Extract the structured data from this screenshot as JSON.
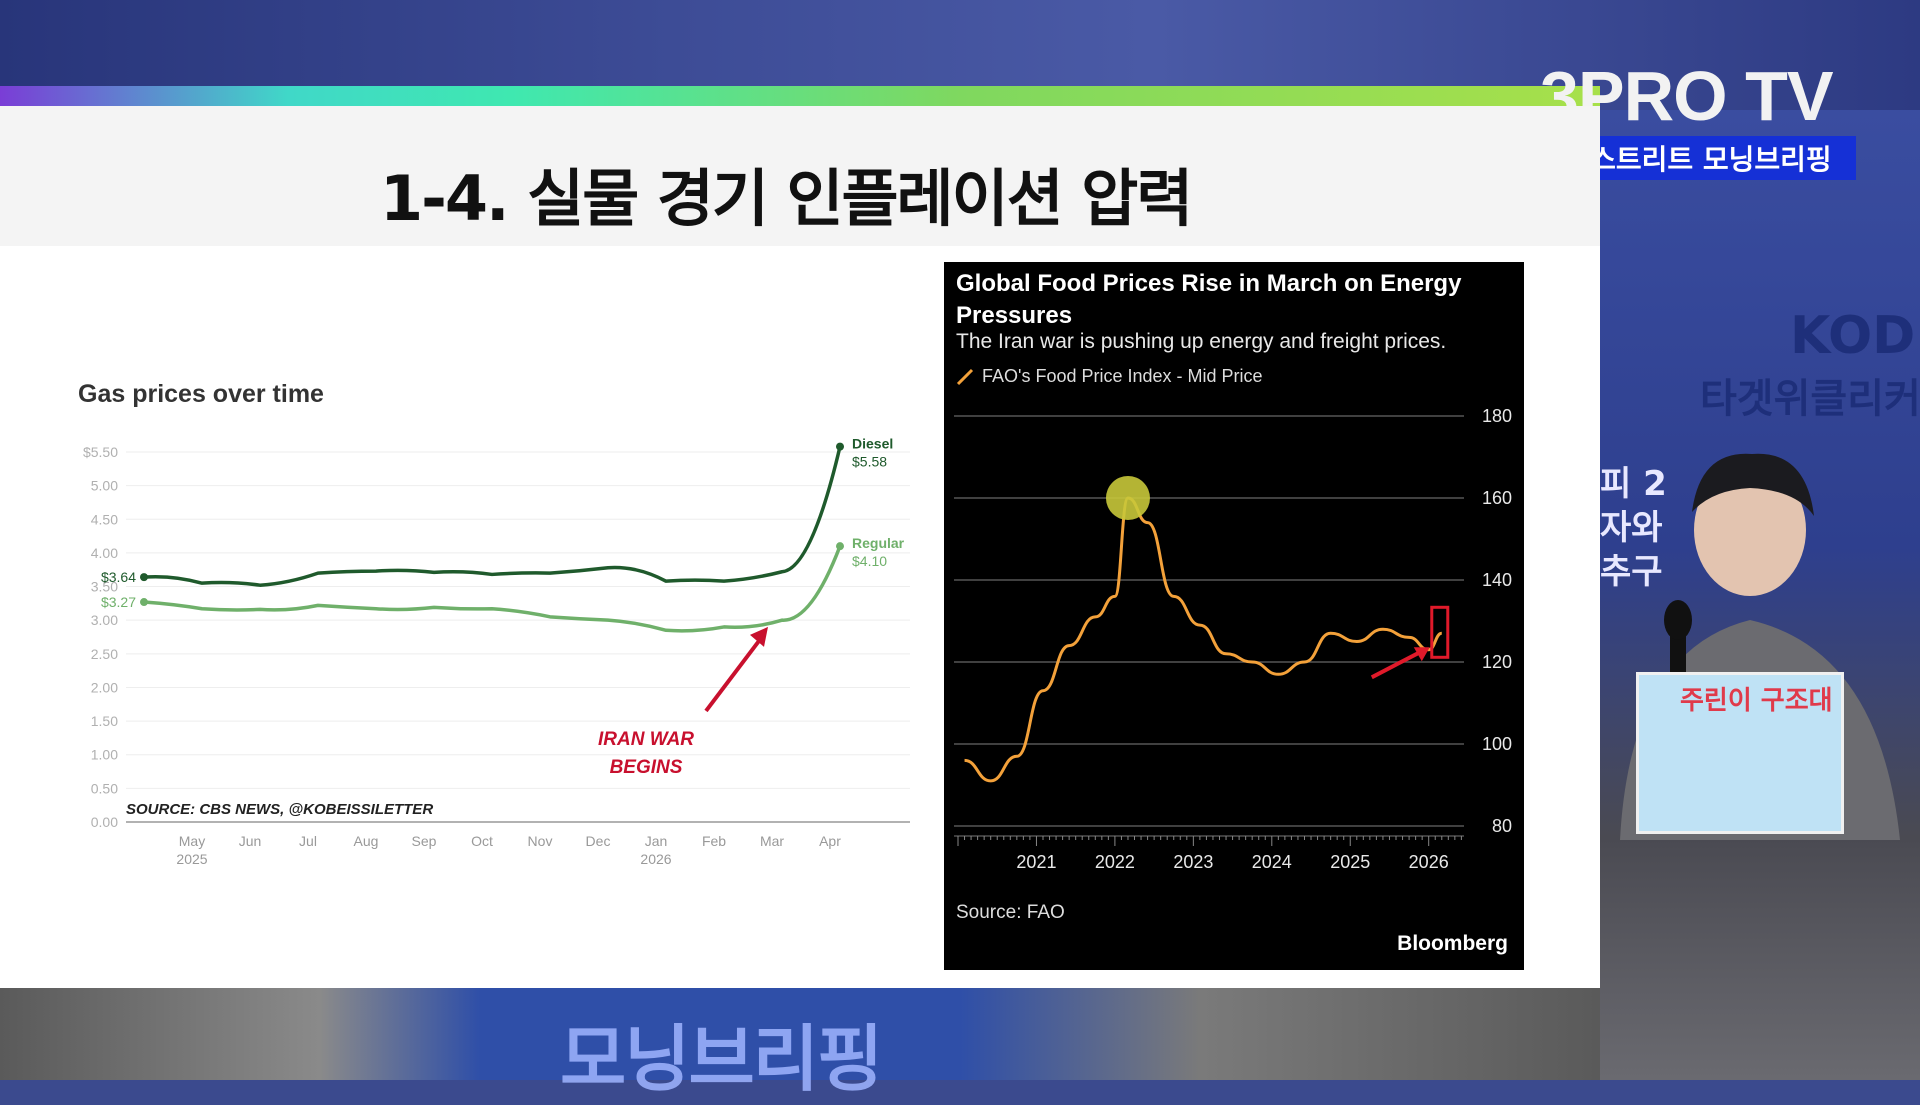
{
  "header": {
    "channel_logo": "3PRO TV",
    "show_badge": "월스트리트 모닝브리핑"
  },
  "slide": {
    "title": "1-4. 실물 경기 인플레이션 압력"
  },
  "studio": {
    "wall_text_1": "KODE",
    "wall_text_2": "타겟위클리커",
    "wall_text_3": "피 2",
    "wall_text_4": "자와",
    "wall_text_5": "추구",
    "desk_banner": "주린이 구조대",
    "bottom_sign": "모닝브리핑"
  },
  "chart_data": [
    {
      "type": "line",
      "title": "Gas prices over time",
      "x": [
        "2025-04-15",
        "2025-05",
        "2025-06",
        "2025-07",
        "2025-08",
        "2025-09",
        "2025-10",
        "2025-11",
        "2025-12",
        "2026-01",
        "2026-02",
        "2026-03",
        "2026-04"
      ],
      "xtick_labels": [
        "May",
        "Jun",
        "Jul",
        "Aug",
        "Sep",
        "Oct",
        "Nov",
        "Dec",
        "Jan",
        "Feb",
        "Mar",
        "Apr"
      ],
      "xtick_year_labels": {
        "May": "2025",
        "Jan": "2026"
      },
      "ytick_labels": [
        "$5.50",
        "5.00",
        "4.50",
        "4.00",
        "3.50",
        "3.00",
        "2.50",
        "2.00",
        "1.50",
        "1.00",
        "0.50",
        "0.00"
      ],
      "ylim": [
        0,
        5.5
      ],
      "series": [
        {
          "name": "Diesel",
          "color": "#1f5a2c",
          "start_label": "$3.64",
          "end_label": "$5.58",
          "values": [
            3.64,
            3.55,
            3.52,
            3.7,
            3.73,
            3.71,
            3.68,
            3.7,
            3.78,
            3.58,
            3.58,
            3.72,
            5.58
          ]
        },
        {
          "name": "Regular",
          "color": "#6fb06a",
          "start_label": "$3.27",
          "end_label": "$4.10",
          "values": [
            3.27,
            3.17,
            3.16,
            3.22,
            3.17,
            3.19,
            3.17,
            3.05,
            3.0,
            2.85,
            2.9,
            3.0,
            4.1
          ]
        }
      ],
      "annotation": {
        "text_line1": "IRAN WAR",
        "text_line2": "BEGINS",
        "color": "#c8102e"
      },
      "source": "SOURCE: CBS NEWS, @KOBEISSILETTER",
      "grid": true
    },
    {
      "type": "line",
      "title": "Global Food Prices Rise in March on Energy Pressures",
      "subtitle": "The Iran war is pushing up energy and freight prices.",
      "legend": "FAO's Food Price Index - Mid Price",
      "line_color": "#f3a13a",
      "x": [
        "2020-02",
        "2020-06",
        "2020-10",
        "2021-02",
        "2021-06",
        "2021-10",
        "2022-01",
        "2022-03",
        "2022-06",
        "2022-10",
        "2023-02",
        "2023-06",
        "2023-10",
        "2024-02",
        "2024-06",
        "2024-10",
        "2025-02",
        "2025-06",
        "2025-10",
        "2026-01",
        "2026-03"
      ],
      "values": [
        96,
        91,
        97,
        113,
        124,
        131,
        136,
        160,
        154,
        136,
        129,
        122,
        120,
        117,
        120,
        127,
        125,
        128,
        126,
        123,
        127
      ],
      "xtick_labels": [
        "2021",
        "2022",
        "2023",
        "2024",
        "2025",
        "2026"
      ],
      "ytick_labels": [
        "180",
        "160",
        "140",
        "120",
        "100",
        "80"
      ],
      "ylim": [
        80,
        180
      ],
      "highlight_peak_color": "#c8c83a",
      "highlight_box_color": "#e01a2a",
      "source": "Source: FAO",
      "brand": "Bloomberg",
      "grid": true
    }
  ]
}
